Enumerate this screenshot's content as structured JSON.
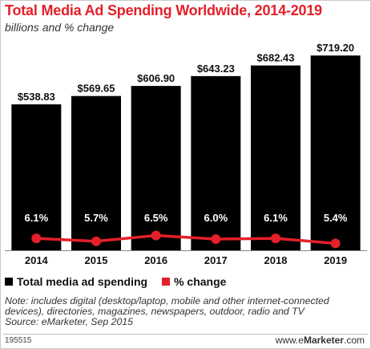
{
  "title": "Total Media Ad Spending Worldwide, 2014-2019",
  "subtitle": "billions and % change",
  "chart_data": {
    "type": "bar",
    "categories": [
      "2014",
      "2015",
      "2016",
      "2017",
      "2018",
      "2019"
    ],
    "series": [
      {
        "name": "Total media ad spending",
        "type": "bar",
        "values": [
          538.83,
          569.65,
          606.9,
          643.23,
          682.43,
          719.2
        ],
        "labels": [
          "$538.83",
          "$569.65",
          "$606.90",
          "$643.23",
          "$682.43",
          "$719.20"
        ],
        "color": "#000000"
      },
      {
        "name": "% change",
        "type": "line",
        "values": [
          6.1,
          5.7,
          6.5,
          6.0,
          6.1,
          5.4
        ],
        "labels": [
          "6.1%",
          "5.7%",
          "6.5%",
          "6.0%",
          "6.1%",
          "5.4%"
        ],
        "color": "#e4202a"
      }
    ],
    "legend_position": "bottom-left",
    "grid": false
  },
  "legend": {
    "bar_label": "Total media ad spending",
    "line_label": "% change",
    "bar_color": "#000000",
    "line_color": "#e4202a"
  },
  "note": "Note: includes digital (desktop/laptop, mobile and other internet-connected devices), directories, magazines, newspapers, outdoor, radio and TV",
  "source": "Source: eMarketer, Sep 2015",
  "footer": {
    "id": "195515",
    "brand_prefix": "www.",
    "brand_e": "e",
    "brand_name": "Marketer",
    "brand_suffix": ".com"
  }
}
